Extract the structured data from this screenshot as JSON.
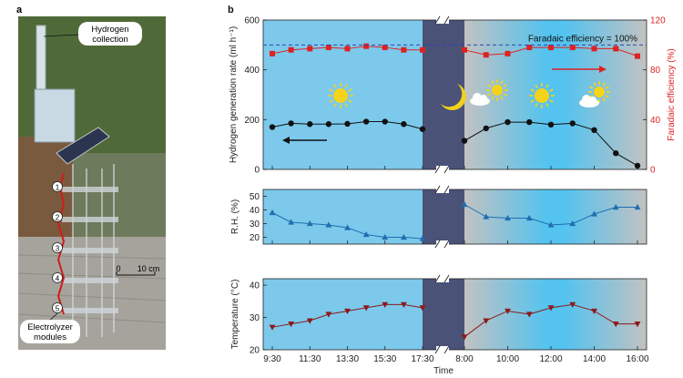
{
  "panel_a": {
    "label": "a",
    "callouts": [
      "Hydrogen collection",
      "Electrolyzer modules"
    ],
    "scale_bar": {
      "zero": "0",
      "label": "10 cm"
    },
    "module_numbers": [
      "1",
      "2",
      "3",
      "4",
      "5"
    ]
  },
  "chart_data": [
    {
      "type": "scatter",
      "panel_label": "b",
      "title": "",
      "x_tick_labels": [
        "9:30",
        "11:30",
        "13:30",
        "15:30",
        "17:30",
        "8:00",
        "10:00",
        "12:00",
        "14:00",
        "16:00"
      ],
      "xlabel": "Time",
      "ylabel": "Hydrogen generation rate (ml h⁻¹)",
      "ylim": [
        0,
        600
      ],
      "y_ticks": [
        0,
        200,
        400,
        600
      ],
      "y2label": "Faradaic efficiency (%)",
      "y2lim": [
        0,
        120
      ],
      "y2_ticks": [
        0,
        40,
        80,
        120
      ],
      "annotation": "Faradaic efficiency = 100%",
      "reference_line_y2": 100,
      "series": [
        {
          "axis": "left",
          "marker": "circle",
          "color": "#111111",
          "day1": {
            "x": [
              "9:30",
              "10:30",
              "11:30",
              "12:30",
              "13:30",
              "14:30",
              "15:30",
              "16:30",
              "17:30"
            ],
            "y": [
              170,
              185,
              182,
              182,
              183,
              192,
              192,
              182,
              162
            ]
          },
          "day2": {
            "x": [
              "8:00",
              "9:00",
              "10:00",
              "11:00",
              "12:00",
              "13:00",
              "14:00",
              "15:00",
              "16:00"
            ],
            "y": [
              115,
              165,
              190,
              190,
              180,
              185,
              158,
              65,
              15
            ]
          }
        },
        {
          "axis": "right",
          "marker": "square",
          "color": "#dd2222",
          "day1": {
            "x": [
              "9:30",
              "10:30",
              "11:30",
              "12:30",
              "13:30",
              "14:30",
              "15:30",
              "16:30",
              "17:30"
            ],
            "y": [
              93,
              96,
              97,
              98,
              97,
              99,
              98,
              96,
              96
            ]
          },
          "day2": {
            "x": [
              "8:00",
              "9:00",
              "10:00",
              "11:00",
              "12:00",
              "13:00",
              "14:00",
              "15:00",
              "16:00"
            ],
            "y": [
              96,
              92,
              93,
              98,
              98,
              98,
              97,
              97,
              91
            ]
          }
        }
      ],
      "grid": false
    },
    {
      "type": "line",
      "ylabel": "R.H. (%)",
      "ylim": [
        15,
        55
      ],
      "y_ticks": [
        20,
        30,
        40,
        50
      ],
      "series": [
        {
          "marker": "triangle-up",
          "color": "#1f6fb0",
          "day1": {
            "x": [
              "9:30",
              "10:30",
              "11:30",
              "12:30",
              "13:30",
              "14:30",
              "15:30",
              "16:30",
              "17:30"
            ],
            "y": [
              38,
              31,
              30,
              29,
              27,
              22,
              20,
              20,
              19
            ]
          },
          "day2": {
            "x": [
              "8:00",
              "9:00",
              "10:00",
              "11:00",
              "12:00",
              "13:00",
              "14:00",
              "15:00",
              "16:00"
            ],
            "y": [
              44,
              35,
              34,
              34,
              29,
              30,
              37,
              42,
              42
            ]
          }
        }
      ],
      "grid": false
    },
    {
      "type": "line",
      "ylabel": "Temperature (°C)",
      "ylim": [
        20,
        42
      ],
      "y_ticks": [
        20,
        30,
        40
      ],
      "xlabel": "Time",
      "series": [
        {
          "marker": "triangle-down",
          "color": "#8b1a1a",
          "day1": {
            "x": [
              "9:30",
              "10:30",
              "11:30",
              "12:30",
              "13:30",
              "14:30",
              "15:30",
              "16:30",
              "17:30"
            ],
            "y": [
              27,
              28,
              29,
              31,
              32,
              33,
              34,
              34,
              33
            ]
          },
          "day2": {
            "x": [
              "8:00",
              "9:00",
              "10:00",
              "11:00",
              "12:00",
              "13:00",
              "14:00",
              "15:00",
              "16:00"
            ],
            "y": [
              24,
              29,
              32,
              31,
              33,
              34,
              32,
              28,
              28
            ]
          }
        }
      ],
      "grid": false
    }
  ],
  "colors": {
    "day_bg": "#6fc6ec",
    "night_bg": "#4a5278",
    "dusk_bg": "#b8b8b8",
    "sun": "#f5d31a"
  }
}
